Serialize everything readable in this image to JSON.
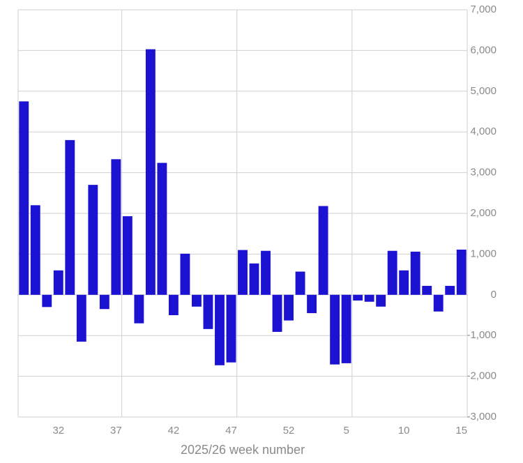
{
  "chart_data": {
    "type": "bar",
    "x_label": "2025/26 week number",
    "categories": [
      null,
      null,
      null,
      "32",
      null,
      null,
      null,
      null,
      "37",
      null,
      null,
      null,
      null,
      "42",
      null,
      null,
      null,
      null,
      "47",
      null,
      null,
      null,
      null,
      "52",
      null,
      null,
      null,
      null,
      "5",
      null,
      null,
      null,
      null,
      "10",
      null,
      null,
      null,
      null,
      "15"
    ],
    "values": [
      4750,
      2200,
      -300,
      600,
      3800,
      -1150,
      2700,
      -350,
      3330,
      1930,
      -700,
      6030,
      3240,
      -500,
      1010,
      -290,
      -840,
      -1730,
      -1660,
      1100,
      770,
      1080,
      -910,
      -630,
      570,
      -450,
      2180,
      -1710,
      -1680,
      -140,
      -170,
      -290,
      1080,
      600,
      1060,
      220,
      -410,
      220,
      1110
    ],
    "color": "#1c13d2",
    "ylim": [
      -3000,
      7000
    ],
    "yticks": [
      {
        "value": -3000,
        "label": "-3,000"
      },
      {
        "value": -2000,
        "label": "-2,000"
      },
      {
        "value": -1000,
        "label": "-1,000"
      },
      0,
      {
        "value": 1000,
        "label": "1,000"
      },
      {
        "value": 2000,
        "label": "2,000"
      },
      {
        "value": 3000,
        "label": "3,000"
      },
      {
        "value": 4000,
        "label": "4,000"
      },
      {
        "value": 5000,
        "label": "5,000"
      },
      {
        "value": 6000,
        "label": "6,000"
      },
      {
        "value": 7000,
        "label": "7,000"
      }
    ],
    "grid": true
  }
}
